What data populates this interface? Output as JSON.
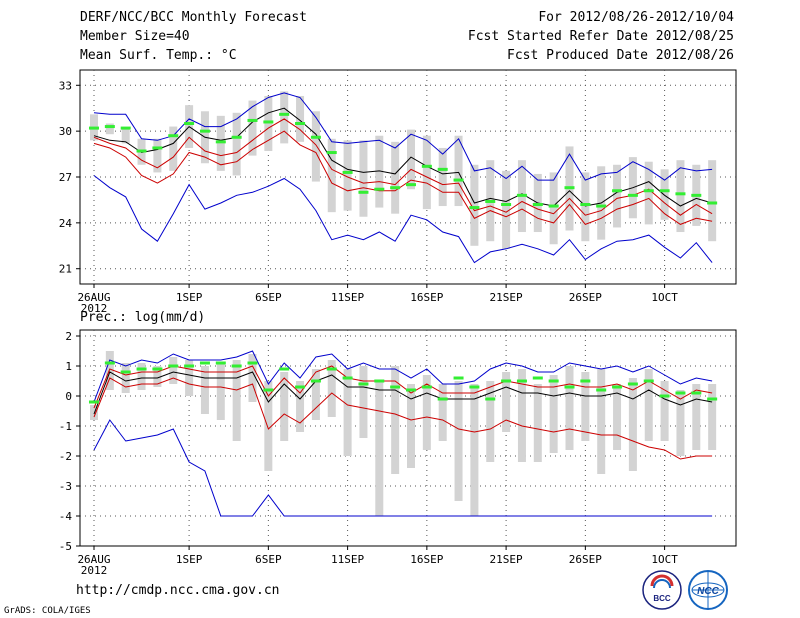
{
  "header": {
    "title": "DERF/NCC/BCC Monthly Forecast",
    "member_size": "Member Size=40",
    "variable": "Mean Surf. Temp.: °C",
    "period": "For 2012/08/26-2012/10/04",
    "start_date": "Fcst Started Refer Date 2012/08/25",
    "produced_date": "Fcst Produced Date 2012/08/26"
  },
  "footer": {
    "url": "http://cmdp.ncc.cma.gov.cn",
    "grads": "GrADS: COLA/IGES",
    "logo_bcc": "BCC",
    "logo_ncc": "NCC"
  },
  "colors": {
    "box": "#d3d3d3",
    "median": "#33ee33",
    "mean": "#000000",
    "spread": "#cc0000",
    "extreme": "#0000cc",
    "grid": "#555555"
  },
  "chart_data": [
    {
      "type": "box-and-line",
      "title": "Mean Surf. Temp.: °C",
      "ylim": [
        20,
        34
      ],
      "yticks": [
        21,
        24,
        27,
        30,
        33
      ],
      "ytick_labels": [
        "21",
        "24",
        "27",
        "30",
        "33"
      ],
      "xticks": [
        1,
        7,
        12,
        17,
        22,
        27,
        32,
        37
      ],
      "xtick_labels": [
        "26AUG",
        "1SEP",
        "6SEP",
        "11SEP",
        "16SEP",
        "21SEP",
        "26SEP",
        "1OCT"
      ],
      "xtick_sublabel": "2012",
      "grid": true,
      "x": [
        1,
        2,
        3,
        4,
        5,
        6,
        7,
        8,
        9,
        10,
        11,
        12,
        13,
        14,
        15,
        16,
        17,
        18,
        19,
        20,
        21,
        22,
        23,
        24,
        25,
        26,
        27,
        28,
        29,
        30,
        31,
        32,
        33,
        34,
        35,
        36,
        37,
        38,
        39,
        40
      ],
      "series": [
        {
          "name": "max",
          "values": [
            31.2,
            31.1,
            31.1,
            29.5,
            29.4,
            29.7,
            30.8,
            30.3,
            30.3,
            30.8,
            31.6,
            32.2,
            32.5,
            32.2,
            30.9,
            29.3,
            29.2,
            29.3,
            29.4,
            28.9,
            29.8,
            29.4,
            28.5,
            29.5,
            27.4,
            27.6,
            26.9,
            27.7,
            26.8,
            26.8,
            28.5,
            26.8,
            27.2,
            27.3,
            28.0,
            27.5,
            26.8,
            27.6,
            27.4,
            27.5
          ]
        },
        {
          "name": "mean_plus_sd",
          "values": [
            29.6,
            29.2,
            28.9,
            28.1,
            27.6,
            28.3,
            29.6,
            28.7,
            28.4,
            28.6,
            29.4,
            30.2,
            30.8,
            30.1,
            29.1,
            27.5,
            27.0,
            26.6,
            26.7,
            26.5,
            27.5,
            27.0,
            26.5,
            26.6,
            24.8,
            25.1,
            24.7,
            25.4,
            24.9,
            24.6,
            25.6,
            24.5,
            24.8,
            25.6,
            25.8,
            26.2,
            25.3,
            24.5,
            25.2,
            24.6
          ]
        },
        {
          "name": "mean",
          "values": [
            29.7,
            29.4,
            29.3,
            28.6,
            28.8,
            29.2,
            30.3,
            29.6,
            29.4,
            29.6,
            30.6,
            31.2,
            31.5,
            30.7,
            29.8,
            28.1,
            27.5,
            27.3,
            27.4,
            27.2,
            28.3,
            27.7,
            27.2,
            27.3,
            25.3,
            25.6,
            25.4,
            25.9,
            25.3,
            25.1,
            26.1,
            25.1,
            25.3,
            26.0,
            26.3,
            26.7,
            25.8,
            25.1,
            25.6,
            25.3
          ]
        },
        {
          "name": "mean_minus_sd",
          "values": [
            29.2,
            28.9,
            28.3,
            27.1,
            26.6,
            27.2,
            28.6,
            28.3,
            27.8,
            28.0,
            28.8,
            29.4,
            30.0,
            29.1,
            28.6,
            26.6,
            26.1,
            26.3,
            26.1,
            26.1,
            26.8,
            26.6,
            26.0,
            26.0,
            24.3,
            24.8,
            24.4,
            24.9,
            24.3,
            24.0,
            25.2,
            23.9,
            24.3,
            24.9,
            25.2,
            25.6,
            24.6,
            23.9,
            24.3,
            24.1
          ]
        },
        {
          "name": "min",
          "values": [
            27.1,
            26.3,
            25.7,
            23.6,
            22.8,
            24.6,
            26.5,
            24.9,
            25.3,
            25.8,
            26.0,
            26.4,
            26.9,
            26.2,
            24.8,
            22.9,
            23.2,
            22.9,
            23.4,
            22.8,
            24.5,
            24.2,
            23.4,
            23.1,
            21.4,
            22.1,
            22.3,
            22.6,
            22.3,
            21.9,
            22.9,
            21.6,
            22.3,
            22.8,
            22.9,
            23.2,
            22.4,
            21.7,
            22.7,
            21.4
          ]
        },
        {
          "name": "box_q1",
          "values": [
            29.4,
            29.8,
            29.2,
            27.8,
            27.3,
            27.4,
            28.9,
            27.9,
            27.4,
            27.1,
            28.4,
            28.7,
            29.2,
            29.3,
            26.7,
            24.7,
            24.8,
            24.4,
            25.0,
            24.6,
            26.2,
            24.9,
            25.1,
            25.1,
            22.5,
            22.8,
            22.3,
            23.4,
            23.4,
            22.6,
            23.5,
            22.8,
            22.9,
            23.7,
            24.3,
            23.9,
            24.2,
            23.4,
            23.8,
            22.8
          ]
        },
        {
          "name": "box_q3",
          "values": [
            31.1,
            30.5,
            30.2,
            29.5,
            29.5,
            30.3,
            31.7,
            31.3,
            31.0,
            31.2,
            32.0,
            32.3,
            32.6,
            32.3,
            31.3,
            29.5,
            29.4,
            29.4,
            29.7,
            29.3,
            30.1,
            29.7,
            28.9,
            29.7,
            27.8,
            28.1,
            27.4,
            28.1,
            27.2,
            27.3,
            29.0,
            27.3,
            27.7,
            27.8,
            28.3,
            28.0,
            27.5,
            28.1,
            27.8,
            28.1
          ]
        },
        {
          "name": "median",
          "values": [
            30.2,
            30.3,
            30.2,
            28.7,
            28.9,
            29.7,
            30.5,
            30.0,
            29.3,
            29.6,
            30.7,
            30.6,
            31.1,
            30.5,
            29.6,
            28.6,
            27.3,
            26.0,
            26.2,
            26.3,
            26.5,
            27.7,
            27.5,
            26.8,
            25.0,
            25.4,
            25.2,
            25.8,
            25.2,
            25.1,
            26.3,
            25.2,
            25.1,
            26.1,
            25.8,
            26.1,
            26.1,
            25.9,
            25.8,
            25.3
          ]
        }
      ]
    },
    {
      "type": "box-and-line",
      "title": "Prec.: log(mm/d)",
      "ylim": [
        -5,
        2.2
      ],
      "yticks": [
        -5,
        -4,
        -3,
        -2,
        -1,
        0,
        1,
        2
      ],
      "ytick_labels": [
        "-5",
        "-4",
        "-3",
        "-2",
        "-1",
        "0",
        "1",
        "2"
      ],
      "xticks": [
        1,
        7,
        12,
        17,
        22,
        27,
        32,
        37
      ],
      "xtick_labels": [
        "26AUG",
        "1SEP",
        "6SEP",
        "11SEP",
        "16SEP",
        "21SEP",
        "26SEP",
        "1OCT"
      ],
      "xtick_sublabel": "2012",
      "grid": true,
      "x": [
        1,
        2,
        3,
        4,
        5,
        6,
        7,
        8,
        9,
        10,
        11,
        12,
        13,
        14,
        15,
        16,
        17,
        18,
        19,
        20,
        21,
        22,
        23,
        24,
        25,
        26,
        27,
        28,
        29,
        30,
        31,
        32,
        33,
        34,
        35,
        36,
        37,
        38,
        39,
        40
      ],
      "series": [
        {
          "name": "max",
          "values": [
            -0.2,
            1.2,
            1.0,
            1.2,
            1.1,
            1.4,
            1.2,
            1.2,
            1.2,
            1.3,
            1.5,
            0.4,
            1.1,
            0.6,
            1.3,
            1.4,
            0.9,
            1.1,
            0.9,
            0.9,
            0.6,
            0.9,
            0.4,
            0.4,
            0.5,
            0.9,
            1.1,
            1.0,
            0.8,
            0.8,
            1.1,
            1.0,
            0.9,
            1.0,
            0.8,
            1.0,
            0.7,
            0.4,
            0.6,
            0.5
          ]
        },
        {
          "name": "mean_plus_sd",
          "values": [
            -0.4,
            0.9,
            0.7,
            0.8,
            0.8,
            1.0,
            0.9,
            0.8,
            0.8,
            0.8,
            1.0,
            0.0,
            0.6,
            0.1,
            0.8,
            1.0,
            0.6,
            0.5,
            0.5,
            0.5,
            0.1,
            0.4,
            0.1,
            0.1,
            0.1,
            0.3,
            0.5,
            0.4,
            0.3,
            0.3,
            0.4,
            0.3,
            0.3,
            0.4,
            0.2,
            0.5,
            0.2,
            -0.1,
            0.2,
            0.1
          ]
        },
        {
          "name": "mean",
          "values": [
            -0.6,
            0.8,
            0.5,
            0.6,
            0.6,
            0.8,
            0.7,
            0.6,
            0.6,
            0.6,
            0.8,
            -0.2,
            0.4,
            -0.1,
            0.5,
            0.7,
            0.3,
            0.3,
            0.2,
            0.2,
            -0.1,
            0.1,
            -0.1,
            -0.1,
            -0.1,
            0.1,
            0.3,
            0.1,
            0.1,
            0.0,
            0.1,
            0.0,
            0.0,
            0.1,
            -0.1,
            0.2,
            -0.1,
            -0.3,
            -0.1,
            -0.2
          ]
        },
        {
          "name": "mean_minus_sd",
          "values": [
            -0.7,
            0.6,
            0.3,
            0.4,
            0.4,
            0.6,
            0.4,
            0.3,
            0.3,
            0.2,
            0.4,
            -1.1,
            -0.6,
            -0.9,
            -0.4,
            0.1,
            -0.3,
            -0.4,
            -0.5,
            -0.6,
            -0.8,
            -0.7,
            -0.8,
            -1.1,
            -1.2,
            -1.1,
            -0.8,
            -1.0,
            -1.1,
            -1.2,
            -1.1,
            -1.2,
            -1.3,
            -1.3,
            -1.5,
            -1.7,
            -1.8,
            -2.1,
            -2.0,
            -2.0
          ]
        },
        {
          "name": "min",
          "values": [
            -1.8,
            -0.8,
            -1.5,
            -1.4,
            -1.3,
            -1.1,
            -2.2,
            -2.5,
            -4.0,
            -4.0,
            -4.0,
            -3.3,
            -4.0,
            -4.0,
            -4.0,
            -4.0,
            -4.0,
            -4.0,
            -4.0,
            -4.0,
            -4.0,
            -4.0,
            -4.0,
            -4.0,
            -4.0,
            -4.0,
            -4.0,
            -4.0,
            -4.0,
            -4.0,
            -4.0,
            -4.0,
            -4.0,
            -4.0,
            -4.0,
            -4.0,
            -4.0,
            -4.0,
            -4.0,
            -4.0
          ]
        },
        {
          "name": "box_q1",
          "values": [
            -0.8,
            0.2,
            0.1,
            0.2,
            0.3,
            0.4,
            0.0,
            -0.6,
            -0.8,
            -1.5,
            -0.2,
            -2.5,
            -1.5,
            -1.2,
            -0.8,
            -0.7,
            -2.0,
            -1.4,
            -4.0,
            -2.6,
            -2.4,
            -1.8,
            -1.5,
            -3.5,
            -4.0,
            -2.2,
            -1.2,
            -2.2,
            -2.2,
            -1.9,
            -1.8,
            -1.5,
            -2.6,
            -1.8,
            -2.5,
            -1.5,
            -1.5,
            -2.0,
            -1.8,
            -1.8
          ]
        },
        {
          "name": "box_q3",
          "values": [
            -0.3,
            1.5,
            1.1,
            1.1,
            1.0,
            1.3,
            1.2,
            1.0,
            1.1,
            1.2,
            1.4,
            0.5,
            0.8,
            0.5,
            0.9,
            1.2,
            0.9,
            1.0,
            0.5,
            1.0,
            0.4,
            0.7,
            0.4,
            0.5,
            0.4,
            0.5,
            0.8,
            0.9,
            0.4,
            0.7,
            1.0,
            0.8,
            0.9,
            0.4,
            0.6,
            0.9,
            0.5,
            0.2,
            0.4,
            0.4
          ]
        },
        {
          "name": "median",
          "values": [
            -0.2,
            1.1,
            0.8,
            0.9,
            0.9,
            1.0,
            1.0,
            1.1,
            1.1,
            1.0,
            1.1,
            0.2,
            0.9,
            0.3,
            0.5,
            0.9,
            0.6,
            0.4,
            0.5,
            0.3,
            0.2,
            0.3,
            -0.1,
            0.6,
            0.3,
            -0.1,
            0.5,
            0.5,
            0.6,
            0.5,
            0.3,
            0.5,
            0.2,
            0.3,
            0.4,
            0.5,
            0.0,
            0.1,
            0.1,
            -0.1
          ]
        }
      ]
    }
  ],
  "panel2_label": "Prec.: log(mm/d)"
}
